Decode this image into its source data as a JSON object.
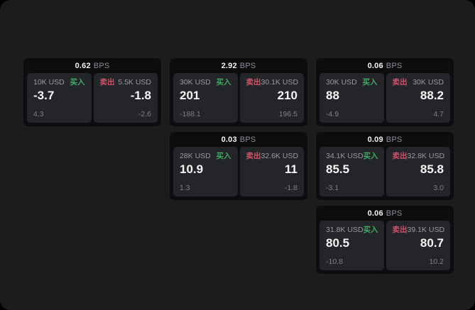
{
  "labels": {
    "bps_unit": "BPS",
    "buy": "买入",
    "sell": "卖出"
  },
  "colors": {
    "page_bg": "#1c1c1e",
    "card_bg": "#0d0d0f",
    "panel_bg": "#242529",
    "buy_green": "#40aa66",
    "sell_red": "#cf5468",
    "value_white": "#f5f5f6",
    "muted_gray": "#8e8e93"
  },
  "cards": [
    {
      "grid": {
        "row": 1,
        "col": 1
      },
      "bps_value": "0.62",
      "buy_amount": "10K USD",
      "buy_value": "-3.7",
      "buy_sub": "4.3",
      "sell_amount": "5.5K USD",
      "sell_value": "-1.8",
      "sell_sub": "-2.6"
    },
    {
      "grid": {
        "row": 1,
        "col": 2
      },
      "bps_value": "2.92",
      "buy_amount": "30K USD",
      "buy_value": "201",
      "buy_sub": "-188.1",
      "sell_amount": "30.1K USD",
      "sell_value": "210",
      "sell_sub": "196.5"
    },
    {
      "grid": {
        "row": 1,
        "col": 3
      },
      "bps_value": "0.06",
      "buy_amount": "30K USD",
      "buy_value": "88",
      "buy_sub": "-4.9",
      "sell_amount": "30K USD",
      "sell_value": "88.2",
      "sell_sub": "4.7"
    },
    {
      "grid": {
        "row": 2,
        "col": 2
      },
      "bps_value": "0.03",
      "buy_amount": "28K USD",
      "buy_value": "10.9",
      "buy_sub": "1.3",
      "sell_amount": "32.6K USD",
      "sell_value": "11",
      "sell_sub": "-1.8"
    },
    {
      "grid": {
        "row": 2,
        "col": 3
      },
      "bps_value": "0.09",
      "buy_amount": "34.1K USD",
      "buy_value": "85.5",
      "buy_sub": "-3.1",
      "sell_amount": "32.8K USD",
      "sell_value": "85.8",
      "sell_sub": "3.0"
    },
    {
      "grid": {
        "row": 3,
        "col": 3
      },
      "bps_value": "0.06",
      "buy_amount": "31.8K USD",
      "buy_value": "80.5",
      "buy_sub": "-10.8",
      "sell_amount": "39.1K USD",
      "sell_value": "80.7",
      "sell_sub": "10.2"
    }
  ]
}
